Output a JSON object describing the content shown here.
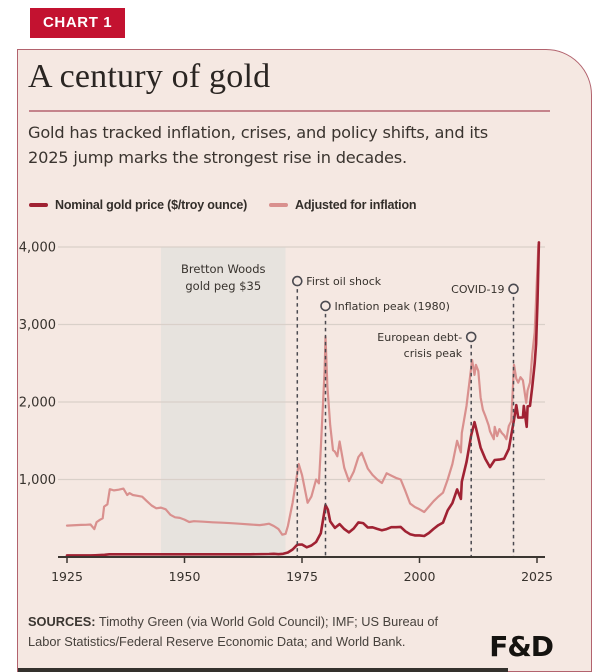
{
  "badge": "CHART 1",
  "title": "A century of gold",
  "subtitle": {
    "line1": "Gold has tracked inflation, crises, and policy shifts, and its",
    "line2": "2025 jump marks the strongest rise in decades."
  },
  "legend": [
    {
      "label": "Nominal gold price ($/troy ounce)",
      "color": "#a02233"
    },
    {
      "label": "Adjusted for inflation",
      "color": "#d9908e"
    }
  ],
  "sources_label": "SOURCES:",
  "sources_text": " Timothy Green (via World Gold Council); IMF; US Bureau of Labor Statistics/Federal Reserve Economic Data; and World Bank.",
  "logo": "F&D",
  "colors": {
    "card_bg": "#f5e8e2",
    "badge_bg": "#c31230",
    "nominal_line": "#a02233",
    "adjusted_line": "#d9908e",
    "gridline": "#d9d0c9",
    "dashed_event_line": "#4b4a50",
    "shaded_region": "#e7e3de",
    "card_border": "#b2636e",
    "divider": "#c5848c"
  },
  "chart_data": {
    "type": "line",
    "title": "A century of gold",
    "xlabel": "",
    "ylabel": "Nominal gold price ($/troy ounce)",
    "x_range": [
      1923,
      2026.5
    ],
    "y_range": [
      0,
      4000
    ],
    "grid": true,
    "legend_position": "top-left above plot",
    "x_ticks": [
      "1925",
      "1950",
      "1975",
      "2000",
      "2025"
    ],
    "x_tick_years": [
      1925,
      1950,
      1975,
      2000,
      2025
    ],
    "y_ticks": [
      "1,000",
      "2,000",
      "3,000",
      "4,000"
    ],
    "y_tick_values": [
      1000,
      2000,
      3000,
      4000
    ],
    "shaded_region": {
      "label_line1": "Bretton Woods",
      "label_line2": "gold peg $35",
      "from_year": 1945,
      "to_year": 1971.5
    },
    "events": [
      {
        "label": "First oil shock",
        "year": 1974,
        "circle_value": 3560,
        "align": "right"
      },
      {
        "label": "Inflation peak (1980)",
        "year": 1980,
        "circle_value": 3240,
        "align": "right"
      },
      {
        "label_line1": "European debt-",
        "label_line2": "crisis peak",
        "year": 2011,
        "circle_value": 2840,
        "align": "left"
      },
      {
        "label": "COVID-19",
        "year": 2020,
        "circle_value": 3460,
        "align": "left"
      }
    ],
    "series": [
      {
        "name": "Nominal gold price ($/troy ounce)",
        "color": "#a02233",
        "width": 2.6,
        "points": [
          [
            1925,
            21
          ],
          [
            1928,
            21
          ],
          [
            1930,
            21
          ],
          [
            1931,
            22
          ],
          [
            1932,
            24
          ],
          [
            1933,
            28
          ],
          [
            1934,
            35
          ],
          [
            1940,
            35
          ],
          [
            1946,
            35
          ],
          [
            1952,
            35
          ],
          [
            1958,
            35
          ],
          [
            1964,
            35
          ],
          [
            1968,
            39
          ],
          [
            1969,
            41
          ],
          [
            1970,
            36
          ],
          [
            1971,
            41
          ],
          [
            1972,
            58
          ],
          [
            1973,
            97
          ],
          [
            1974,
            159
          ],
          [
            1975,
            161
          ],
          [
            1976,
            125
          ],
          [
            1977,
            148
          ],
          [
            1978,
            193
          ],
          [
            1979,
            306
          ],
          [
            1979.8,
            600
          ],
          [
            1980,
            670
          ],
          [
            1980.5,
            610
          ],
          [
            1981,
            460
          ],
          [
            1982,
            376
          ],
          [
            1983,
            424
          ],
          [
            1984,
            360
          ],
          [
            1985,
            317
          ],
          [
            1986,
            368
          ],
          [
            1987,
            446
          ],
          [
            1988,
            437
          ],
          [
            1989,
            381
          ],
          [
            1990,
            383
          ],
          [
            1991,
            362
          ],
          [
            1992,
            344
          ],
          [
            1993,
            360
          ],
          [
            1994,
            384
          ],
          [
            1995,
            384
          ],
          [
            1996,
            388
          ],
          [
            1997,
            331
          ],
          [
            1998,
            294
          ],
          [
            1999,
            279
          ],
          [
            2000,
            279
          ],
          [
            2001,
            271
          ],
          [
            2002,
            310
          ],
          [
            2003,
            363
          ],
          [
            2004,
            410
          ],
          [
            2005,
            444
          ],
          [
            2006,
            603
          ],
          [
            2007,
            695
          ],
          [
            2008,
            872
          ],
          [
            2008.8,
            750
          ],
          [
            2009,
            972
          ],
          [
            2010,
            1225
          ],
          [
            2011,
            1572
          ],
          [
            2011.7,
            1740
          ],
          [
            2012,
            1669
          ],
          [
            2013,
            1411
          ],
          [
            2014,
            1266
          ],
          [
            2015,
            1160
          ],
          [
            2016,
            1251
          ],
          [
            2017,
            1257
          ],
          [
            2018,
            1269
          ],
          [
            2019,
            1393
          ],
          [
            2020.1,
            1770
          ],
          [
            2020.6,
            1960
          ],
          [
            2021,
            1799
          ],
          [
            2022,
            1800
          ],
          [
            2022.2,
            1950
          ],
          [
            2022.8,
            1680
          ],
          [
            2023,
            1943
          ],
          [
            2023.5,
            1950
          ],
          [
            2024,
            2200
          ],
          [
            2024.5,
            2500
          ],
          [
            2024.8,
            2750
          ],
          [
            2025.1,
            3300
          ],
          [
            2025.4,
            4060
          ]
        ]
      },
      {
        "name": "Adjusted for inflation",
        "color": "#d9908e",
        "width": 2.2,
        "points": [
          [
            1925,
            405
          ],
          [
            1926,
            408
          ],
          [
            1927,
            412
          ],
          [
            1928,
            414
          ],
          [
            1929,
            416
          ],
          [
            1930,
            420
          ],
          [
            1930.8,
            360
          ],
          [
            1931.3,
            450
          ],
          [
            1932,
            480
          ],
          [
            1932.6,
            500
          ],
          [
            1932.9,
            650
          ],
          [
            1933.6,
            680
          ],
          [
            1934.1,
            875
          ],
          [
            1935,
            860
          ],
          [
            1936,
            868
          ],
          [
            1937,
            882
          ],
          [
            1937.8,
            800
          ],
          [
            1938.3,
            825
          ],
          [
            1939,
            800
          ],
          [
            1940,
            790
          ],
          [
            1941,
            778
          ],
          [
            1942,
            720
          ],
          [
            1943,
            665
          ],
          [
            1944,
            628
          ],
          [
            1945,
            638
          ],
          [
            1946,
            615
          ],
          [
            1947,
            545
          ],
          [
            1948,
            512
          ],
          [
            1949,
            505
          ],
          [
            1950,
            483
          ],
          [
            1951,
            452
          ],
          [
            1952,
            462
          ],
          [
            1954,
            455
          ],
          [
            1956,
            448
          ],
          [
            1958,
            442
          ],
          [
            1960,
            436
          ],
          [
            1962,
            428
          ],
          [
            1964,
            420
          ],
          [
            1966,
            412
          ],
          [
            1967,
            420
          ],
          [
            1968,
            430
          ],
          [
            1969,
            400
          ],
          [
            1970,
            360
          ],
          [
            1970.8,
            288
          ],
          [
            1971.5,
            300
          ],
          [
            1972,
            400
          ],
          [
            1973,
            700
          ],
          [
            1974.3,
            1200
          ],
          [
            1975,
            1060
          ],
          [
            1976.2,
            700
          ],
          [
            1977,
            780
          ],
          [
            1978,
            1000
          ],
          [
            1978.6,
            950
          ],
          [
            1979,
            1400
          ],
          [
            1979.8,
            2400
          ],
          [
            1980,
            2840
          ],
          [
            1980.4,
            2200
          ],
          [
            1981,
            1700
          ],
          [
            1981.6,
            1380
          ],
          [
            1982,
            1360
          ],
          [
            1982.5,
            1300
          ],
          [
            1983,
            1490
          ],
          [
            1984,
            1150
          ],
          [
            1985,
            980
          ],
          [
            1986,
            1100
          ],
          [
            1987,
            1290
          ],
          [
            1987.7,
            1345
          ],
          [
            1989,
            1140
          ],
          [
            1990,
            1060
          ],
          [
            1991,
            1000
          ],
          [
            1992,
            955
          ],
          [
            1993,
            1080
          ],
          [
            1994,
            1050
          ],
          [
            1995,
            1020
          ],
          [
            1996,
            1000
          ],
          [
            1997,
            850
          ],
          [
            1998,
            690
          ],
          [
            1999,
            645
          ],
          [
            2000,
            615
          ],
          [
            2001,
            580
          ],
          [
            2002,
            650
          ],
          [
            2003,
            720
          ],
          [
            2004,
            780
          ],
          [
            2005,
            830
          ],
          [
            2006,
            1000
          ],
          [
            2007,
            1200
          ],
          [
            2008,
            1500
          ],
          [
            2008.8,
            1350
          ],
          [
            2009,
            1600
          ],
          [
            2010,
            1950
          ],
          [
            2011.2,
            2540
          ],
          [
            2011.7,
            2350
          ],
          [
            2012,
            2480
          ],
          [
            2012.5,
            2400
          ],
          [
            2013,
            2060
          ],
          [
            2013.5,
            1900
          ],
          [
            2014,
            1820
          ],
          [
            2014.7,
            1700
          ],
          [
            2015,
            1620
          ],
          [
            2015.8,
            1520
          ],
          [
            2016,
            1680
          ],
          [
            2016.5,
            1560
          ],
          [
            2017,
            1650
          ],
          [
            2017.5,
            1600
          ],
          [
            2018,
            1570
          ],
          [
            2018.5,
            1520
          ],
          [
            2019,
            1690
          ],
          [
            2019.5,
            1750
          ],
          [
            2020.1,
            2480
          ],
          [
            2020.6,
            2300
          ],
          [
            2021,
            2250
          ],
          [
            2021.5,
            2320
          ],
          [
            2022,
            2280
          ],
          [
            2022.7,
            1990
          ],
          [
            2023,
            2150
          ],
          [
            2023.5,
            2250
          ],
          [
            2024,
            2620
          ],
          [
            2024.5,
            2900
          ],
          [
            2025.3,
            4030
          ]
        ]
      }
    ]
  }
}
